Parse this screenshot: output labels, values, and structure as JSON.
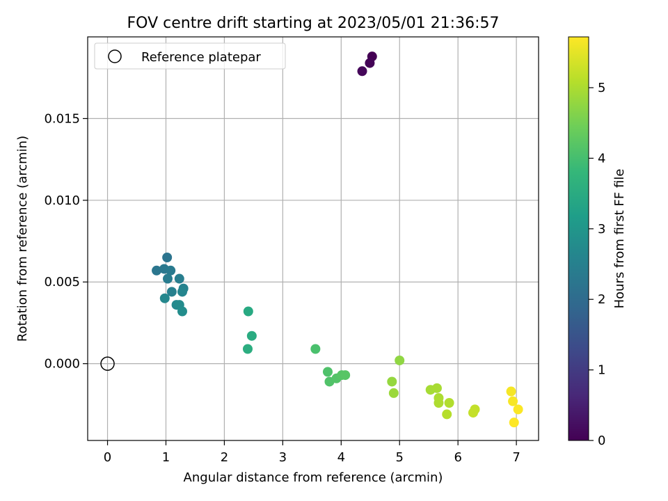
{
  "chart_data": {
    "type": "scatter",
    "title": "FOV centre drift starting at 2023/05/01 21:36:57",
    "xlabel": "Angular distance from reference (arcmin)",
    "ylabel": "Rotation from reference (arcmin)",
    "xlim": [
      -0.34,
      7.38
    ],
    "ylim": [
      -0.0047,
      0.02
    ],
    "x_ticks": [
      0,
      1,
      2,
      3,
      4,
      5,
      6,
      7
    ],
    "x_tick_labels": [
      "0",
      "1",
      "2",
      "3",
      "4",
      "5",
      "6",
      "7"
    ],
    "y_ticks": [
      0.0,
      0.005,
      0.01,
      0.015
    ],
    "y_tick_labels": [
      "0.000",
      "0.005",
      "0.010",
      "0.015"
    ],
    "grid": true,
    "legend": {
      "position": "top-left",
      "entries": [
        {
          "label": "Reference platepar",
          "marker": "open-circle",
          "color": "#000000"
        }
      ]
    },
    "reference_point": {
      "x": 0.0,
      "y": 0.0
    },
    "colorbar": {
      "label": "Hours from first FF file",
      "range": [
        0,
        5.72
      ],
      "ticks": [
        0,
        1,
        2,
        3,
        4,
        5
      ],
      "tick_labels": [
        "0",
        "1",
        "2",
        "3",
        "4",
        "5"
      ],
      "colormap": "viridis",
      "stops": [
        "#440154",
        "#482878",
        "#3e4989",
        "#31688e",
        "#26828e",
        "#1f9e89",
        "#35b779",
        "#6ece58",
        "#b5de2b",
        "#fde725"
      ]
    },
    "points": [
      {
        "x": 4.53,
        "y": 0.0188,
        "t": 0.0
      },
      {
        "x": 4.49,
        "y": 0.0184,
        "t": 0.05
      },
      {
        "x": 4.36,
        "y": 0.0179,
        "t": 0.1
      },
      {
        "x": 1.02,
        "y": 0.0065,
        "t": 2.2
      },
      {
        "x": 0.84,
        "y": 0.0057,
        "t": 2.25
      },
      {
        "x": 0.97,
        "y": 0.0058,
        "t": 2.3
      },
      {
        "x": 1.08,
        "y": 0.0057,
        "t": 2.35
      },
      {
        "x": 1.03,
        "y": 0.0052,
        "t": 2.4
      },
      {
        "x": 1.23,
        "y": 0.0052,
        "t": 2.45
      },
      {
        "x": 1.1,
        "y": 0.0044,
        "t": 2.5
      },
      {
        "x": 1.3,
        "y": 0.0046,
        "t": 2.55
      },
      {
        "x": 1.28,
        "y": 0.0044,
        "t": 2.6
      },
      {
        "x": 0.98,
        "y": 0.004,
        "t": 2.65
      },
      {
        "x": 1.18,
        "y": 0.0036,
        "t": 2.7
      },
      {
        "x": 1.23,
        "y": 0.0036,
        "t": 2.75
      },
      {
        "x": 1.28,
        "y": 0.0032,
        "t": 2.8
      },
      {
        "x": 2.41,
        "y": 0.0032,
        "t": 3.45
      },
      {
        "x": 2.47,
        "y": 0.0017,
        "t": 3.5
      },
      {
        "x": 2.4,
        "y": 0.0009,
        "t": 3.55
      },
      {
        "x": 3.56,
        "y": 0.0009,
        "t": 4.05
      },
      {
        "x": 3.77,
        "y": -0.0005,
        "t": 4.1
      },
      {
        "x": 3.8,
        "y": -0.0011,
        "t": 4.12
      },
      {
        "x": 3.92,
        "y": -0.0009,
        "t": 4.15
      },
      {
        "x": 4.01,
        "y": -0.0007,
        "t": 4.18
      },
      {
        "x": 4.07,
        "y": -0.0007,
        "t": 4.2
      },
      {
        "x": 5.0,
        "y": 0.0002,
        "t": 4.75
      },
      {
        "x": 4.87,
        "y": -0.0011,
        "t": 4.8
      },
      {
        "x": 4.9,
        "y": -0.0018,
        "t": 4.85
      },
      {
        "x": 5.53,
        "y": -0.0016,
        "t": 4.95
      },
      {
        "x": 5.64,
        "y": -0.0015,
        "t": 4.97
      },
      {
        "x": 5.67,
        "y": -0.0021,
        "t": 5.0
      },
      {
        "x": 5.67,
        "y": -0.0024,
        "t": 5.02
      },
      {
        "x": 5.85,
        "y": -0.0024,
        "t": 5.05
      },
      {
        "x": 5.81,
        "y": -0.0031,
        "t": 5.08
      },
      {
        "x": 6.29,
        "y": -0.0028,
        "t": 5.2
      },
      {
        "x": 6.26,
        "y": -0.003,
        "t": 5.22
      },
      {
        "x": 6.91,
        "y": -0.0017,
        "t": 5.65
      },
      {
        "x": 6.94,
        "y": -0.0023,
        "t": 5.67
      },
      {
        "x": 7.03,
        "y": -0.0028,
        "t": 5.7
      },
      {
        "x": 6.96,
        "y": -0.0036,
        "t": 5.72
      }
    ]
  }
}
